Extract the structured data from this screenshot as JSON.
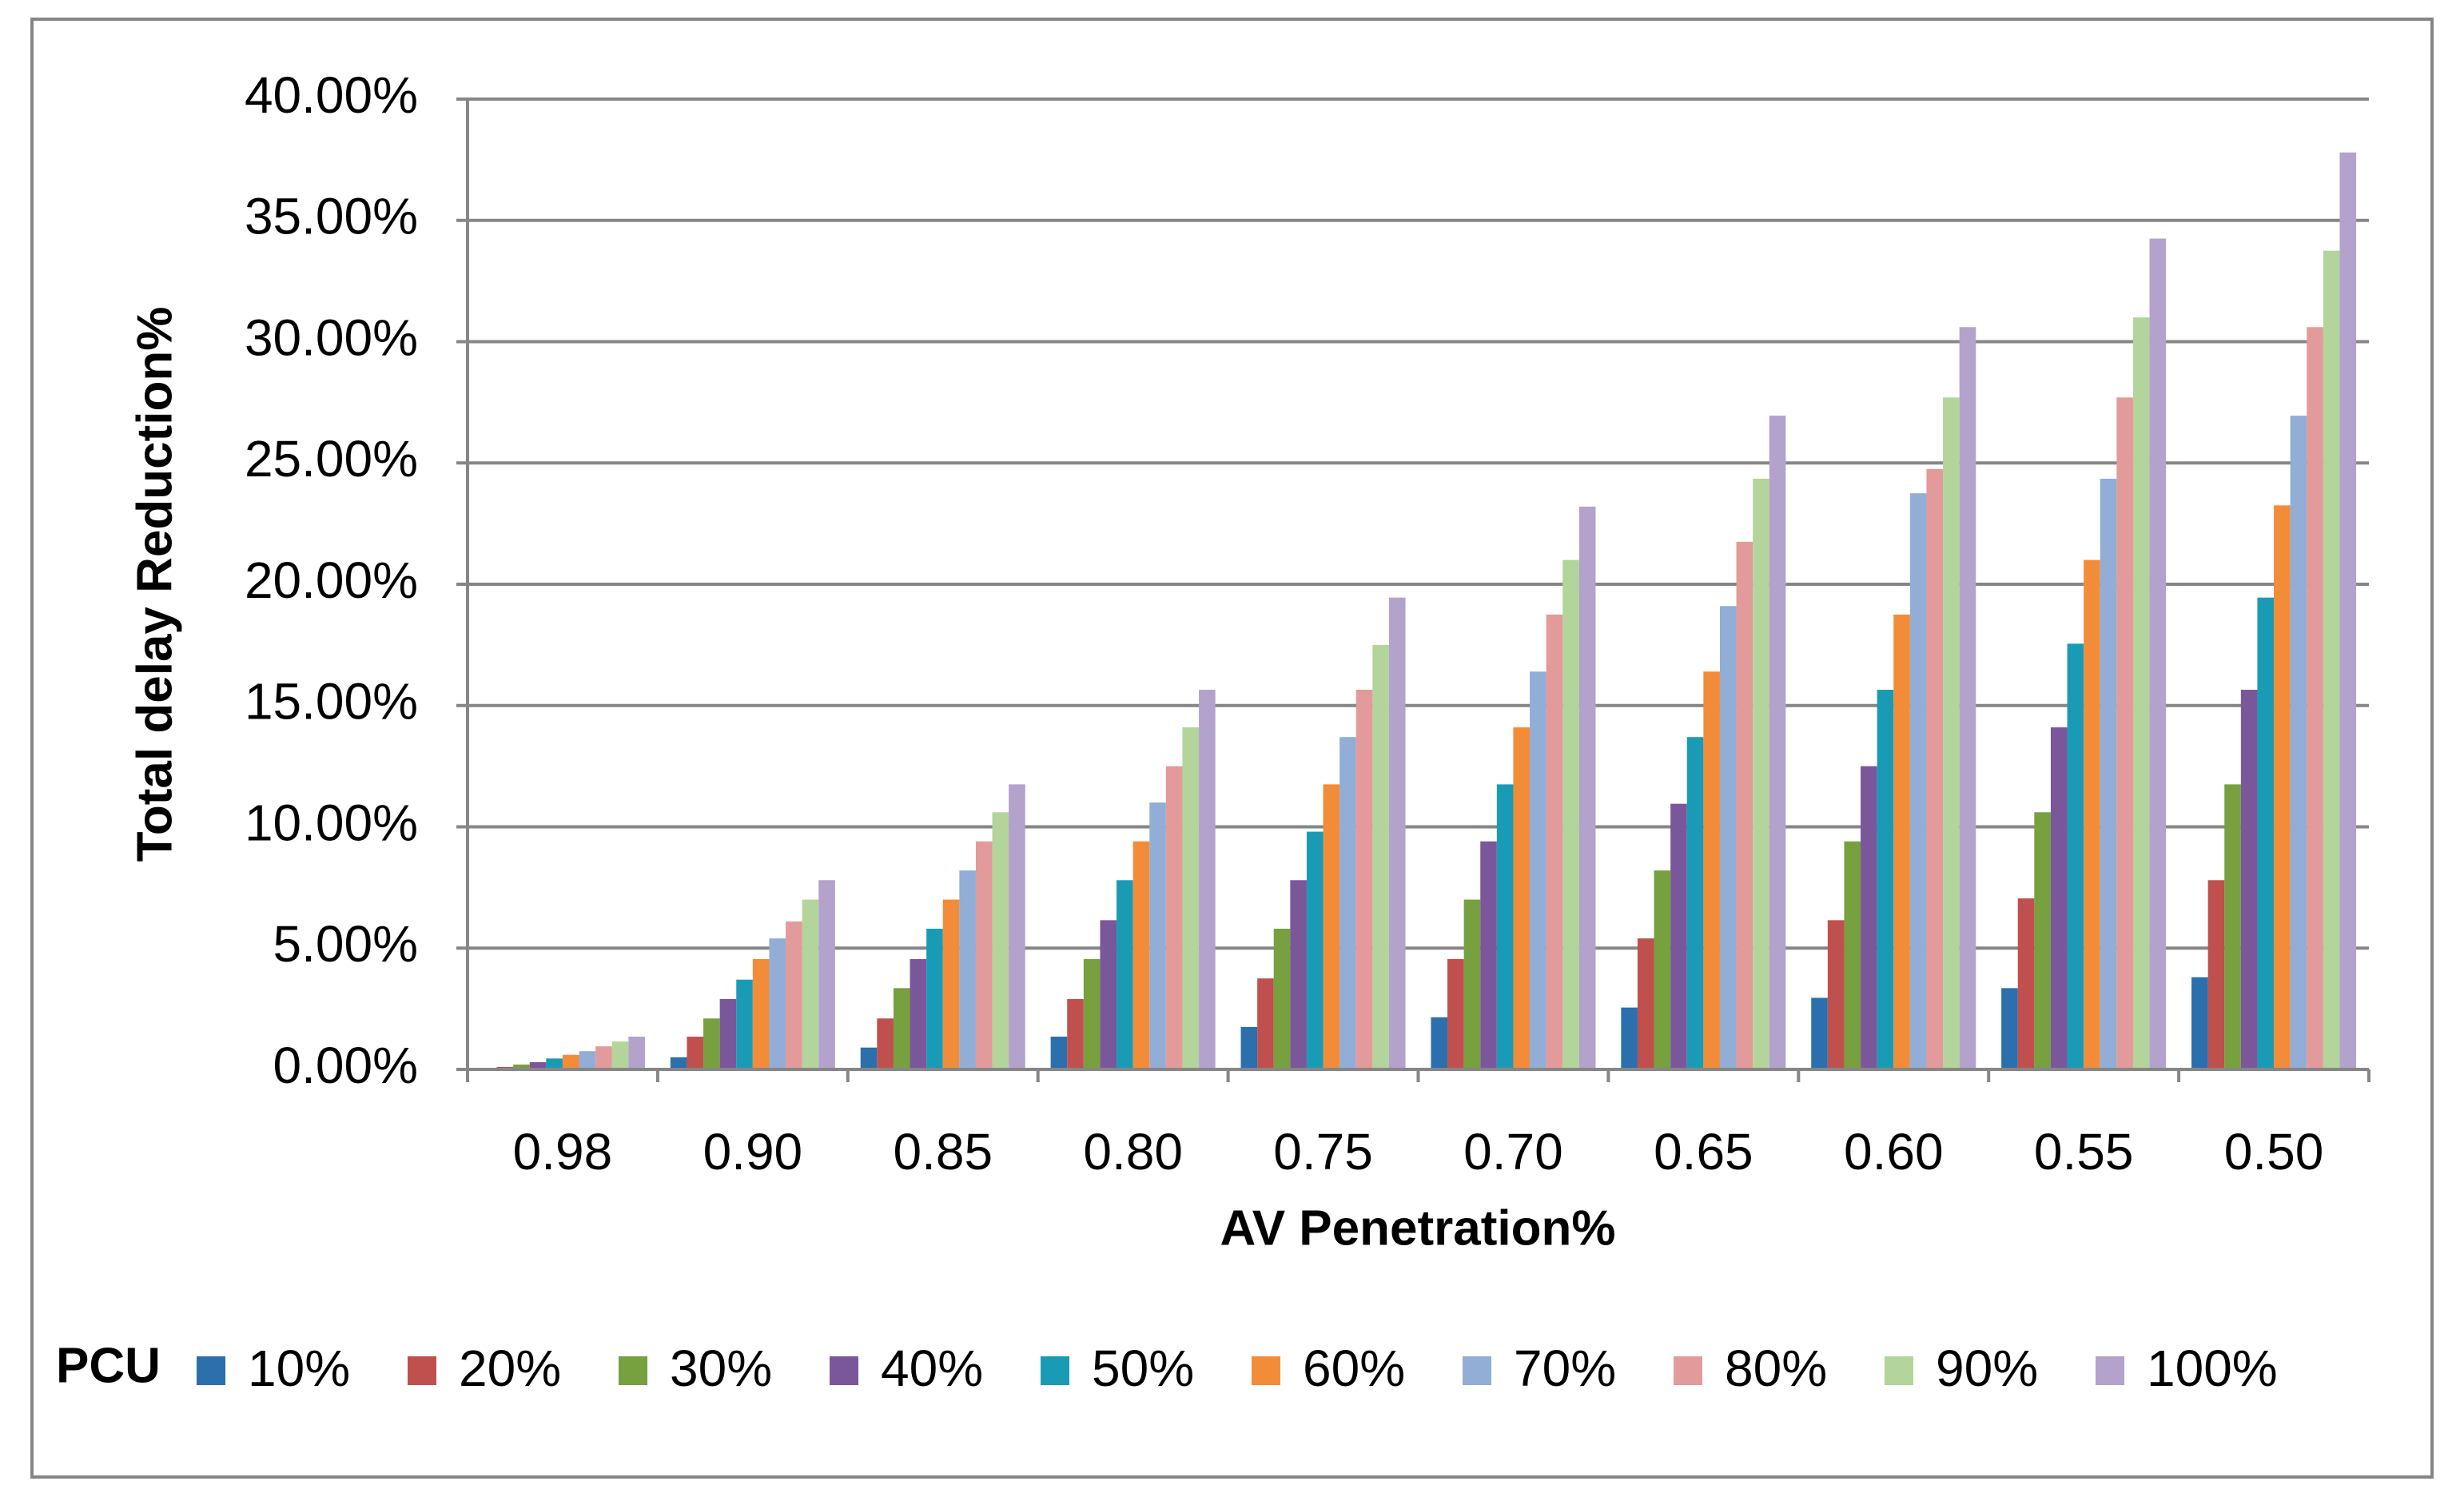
{
  "chart_data": {
    "type": "bar",
    "x_label": "AV Penetration%",
    "y_label": "Total delay Reduction%",
    "legend_title": "PCU",
    "legend_position": "bottom",
    "grid": true,
    "categories": [
      "0.98",
      "0.90",
      "0.85",
      "0.80",
      "0.75",
      "0.70",
      "0.65",
      "0.60",
      "0.55",
      "0.50"
    ],
    "ylim": [
      0,
      40
    ],
    "yticks": [
      {
        "value": 0,
        "label": "0.00%"
      },
      {
        "value": 5,
        "label": "5.00%"
      },
      {
        "value": 10,
        "label": "10.00%"
      },
      {
        "value": 15,
        "label": "15.00%"
      },
      {
        "value": 20,
        "label": "20.00%"
      },
      {
        "value": 25,
        "label": "25.00%"
      },
      {
        "value": 30,
        "label": "30.00%"
      },
      {
        "value": 35,
        "label": "35.00%"
      },
      {
        "value": 40,
        "label": "40.00%"
      }
    ],
    "series": [
      {
        "name": "10%",
        "color": "#2c6fad",
        "values": [
          0.05,
          0.5,
          0.9,
          1.35,
          1.75,
          2.15,
          2.55,
          2.95,
          3.35,
          3.8
        ]
      },
      {
        "name": "20%",
        "color": "#c0504d",
        "values": [
          0.1,
          1.35,
          2.1,
          2.9,
          3.75,
          4.55,
          5.4,
          6.15,
          7.05,
          7.8
        ]
      },
      {
        "name": "30%",
        "color": "#77a03f",
        "values": [
          0.2,
          2.1,
          3.35,
          4.55,
          5.8,
          7.0,
          8.2,
          9.4,
          10.6,
          11.75
        ]
      },
      {
        "name": "40%",
        "color": "#7a579a",
        "values": [
          0.3,
          2.9,
          4.55,
          6.15,
          7.8,
          9.4,
          10.95,
          12.5,
          14.1,
          15.65
        ]
      },
      {
        "name": "50%",
        "color": "#1a9bb5",
        "values": [
          0.45,
          3.7,
          5.8,
          7.8,
          9.8,
          11.75,
          13.7,
          15.65,
          17.55,
          19.45
        ]
      },
      {
        "name": "60%",
        "color": "#f28c38",
        "values": [
          0.6,
          4.55,
          7.0,
          9.4,
          11.75,
          14.1,
          16.4,
          18.75,
          21.0,
          23.25
        ]
      },
      {
        "name": "70%",
        "color": "#92add6",
        "values": [
          0.75,
          5.4,
          8.2,
          11.0,
          13.7,
          16.4,
          19.1,
          23.75,
          24.35,
          26.95
        ]
      },
      {
        "name": "80%",
        "color": "#e39a9a",
        "values": [
          0.95,
          6.1,
          9.4,
          12.5,
          15.65,
          18.75,
          21.75,
          24.75,
          27.7,
          30.6
        ]
      },
      {
        "name": "90%",
        "color": "#b3d49a",
        "values": [
          1.15,
          7.0,
          10.6,
          14.1,
          17.5,
          21.0,
          24.35,
          27.7,
          31.0,
          33.75
        ]
      },
      {
        "name": "100%",
        "color": "#b3a2cc",
        "values": [
          1.35,
          7.8,
          11.75,
          15.65,
          19.45,
          23.2,
          26.95,
          30.6,
          34.25,
          37.8
        ]
      }
    ]
  }
}
